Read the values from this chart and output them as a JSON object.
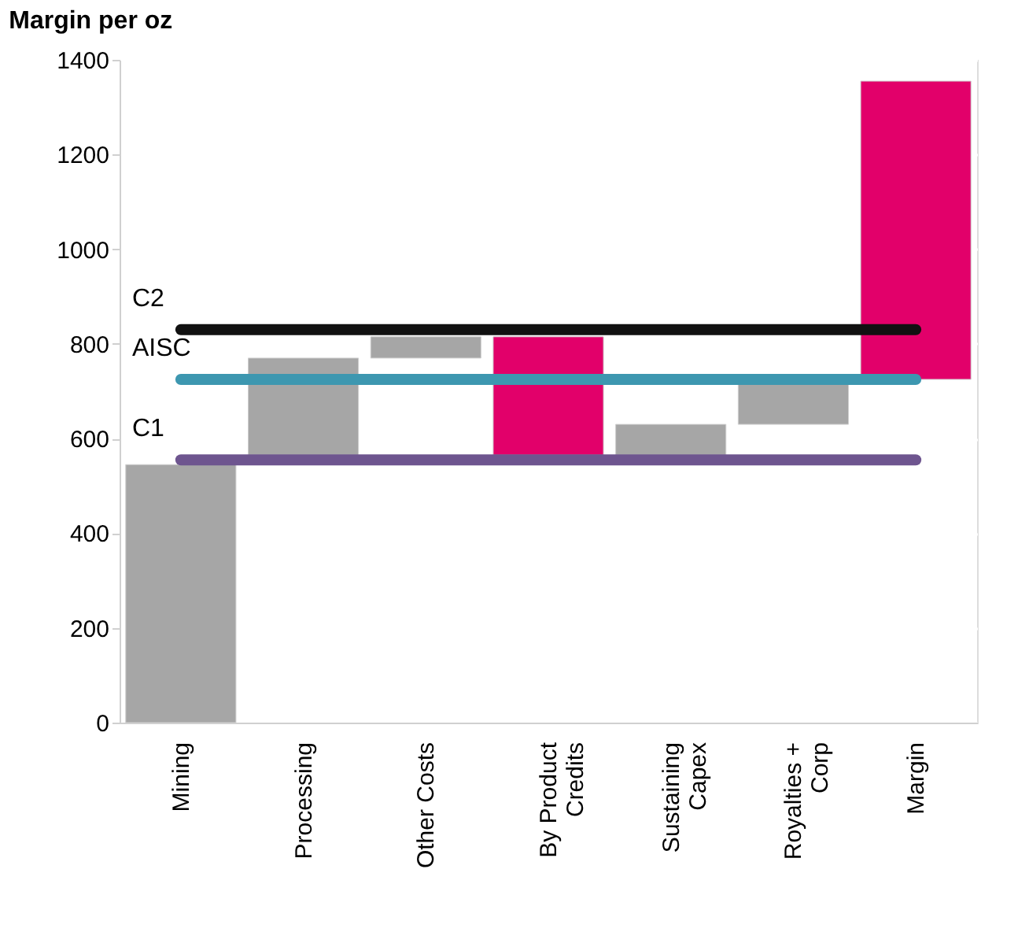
{
  "chart_data": {
    "type": "bar",
    "title": "Margin per oz",
    "categories": [
      "Mining",
      "Processing",
      "Other Costs",
      "By Product Credits",
      "Sustaining Capex",
      "Royalties + Corp",
      "Margin"
    ],
    "values": [
      545,
      205,
      45,
      250,
      65,
      95,
      630
    ],
    "base": [
      0,
      565,
      770,
      565,
      565,
      630,
      725
    ],
    "colors": [
      "#a6a6a6",
      "#a6a6a6",
      "#a6a6a6",
      "#e2006a",
      "#a6a6a6",
      "#a6a6a6",
      "#e2006a"
    ],
    "ylim": [
      0,
      1400
    ],
    "yticks": [
      0,
      200,
      400,
      600,
      800,
      1000,
      1200,
      1400
    ],
    "grid": "y",
    "ref_lines": [
      {
        "axis": "y",
        "value": 830,
        "label": "C2",
        "color": "#111111"
      },
      {
        "axis": "y",
        "value": 725,
        "label": "AISC",
        "color": "#3d97b0"
      },
      {
        "axis": "y",
        "value": 555,
        "label": "C1",
        "color": "#6e558f"
      }
    ]
  }
}
